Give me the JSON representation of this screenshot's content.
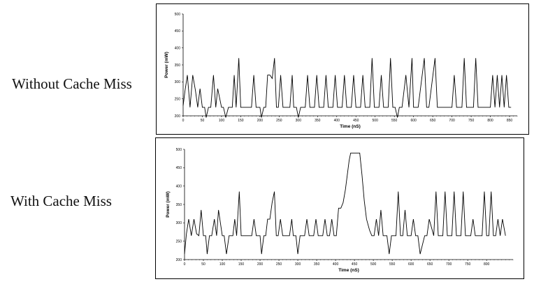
{
  "labels": {
    "top": "Without Cache Miss",
    "bottom": "With Cache Miss"
  },
  "chart_data": [
    {
      "type": "line",
      "title": "",
      "xlabel": "Time (nS)",
      "ylabel": "Power (mW)",
      "xlim": [
        0,
        870
      ],
      "ylim": [
        200,
        500
      ],
      "xticks": [
        0,
        50,
        100,
        150,
        200,
        250,
        300,
        350,
        400,
        450,
        500,
        550,
        600,
        650,
        700,
        750,
        800,
        850
      ],
      "yticks": [
        200,
        250,
        300,
        350,
        400,
        450,
        500
      ],
      "grid": false,
      "series": [
        {
          "x": [
            0,
            5,
            11,
            18,
            25,
            32,
            38,
            44,
            50,
            56,
            60,
            66,
            72,
            79,
            85,
            90,
            100,
            105,
            111,
            118,
            128,
            133,
            138,
            145,
            150,
            160,
            178,
            184,
            190,
            200,
            204,
            210,
            215,
            220,
            226,
            232,
            238,
            243,
            248,
            254,
            260,
            270,
            278,
            284,
            288,
            295,
            300,
            306,
            318,
            324,
            330,
            342,
            348,
            354,
            366,
            372,
            378,
            390,
            396,
            402,
            414,
            420,
            426,
            438,
            444,
            450,
            462,
            468,
            474,
            486,
            492,
            498,
            510,
            516,
            522,
            534,
            540,
            546,
            552,
            558,
            563,
            570,
            580,
            588,
            596,
            600,
            605,
            612,
            628,
            634,
            640,
            656,
            662,
            668,
            700,
            706,
            712,
            726,
            732,
            738,
            756,
            762,
            768,
            800,
            806,
            812,
            818,
            824,
            830,
            836,
            842,
            848,
            854
          ],
          "y": [
            230,
            275,
            320,
            225,
            320,
            275,
            225,
            280,
            225,
            225,
            195,
            225,
            225,
            320,
            225,
            280,
            225,
            225,
            195,
            225,
            225,
            320,
            225,
            370,
            225,
            225,
            225,
            320,
            225,
            225,
            195,
            225,
            225,
            320,
            320,
            310,
            370,
            225,
            225,
            320,
            225,
            225,
            225,
            320,
            225,
            225,
            195,
            225,
            225,
            320,
            225,
            225,
            320,
            225,
            225,
            320,
            225,
            225,
            320,
            225,
            225,
            320,
            225,
            225,
            320,
            225,
            225,
            320,
            225,
            225,
            370,
            225,
            225,
            320,
            225,
            225,
            370,
            225,
            225,
            195,
            225,
            225,
            320,
            225,
            370,
            225,
            225,
            225,
            370,
            225,
            225,
            370,
            225,
            225,
            225,
            320,
            225,
            225,
            370,
            225,
            225,
            370,
            225,
            225,
            320,
            225,
            320,
            225,
            320,
            225,
            320,
            225,
            225
          ]
        }
      ]
    },
    {
      "type": "line",
      "title": "",
      "xlabel": "Time (nS)",
      "ylabel": "Power (mW)",
      "xlim": [
        0,
        870
      ],
      "ylim": [
        200,
        500
      ],
      "xticks": [
        0,
        50,
        100,
        150,
        200,
        250,
        300,
        350,
        400,
        450,
        500,
        550,
        600,
        650,
        700,
        750,
        800
      ],
      "yticks": [
        200,
        250,
        300,
        350,
        400,
        450,
        500
      ],
      "grid": false,
      "series": [
        {
          "x": [
            0,
            5,
            11,
            18,
            25,
            32,
            38,
            44,
            50,
            56,
            60,
            66,
            72,
            79,
            85,
            90,
            100,
            105,
            111,
            118,
            128,
            133,
            138,
            145,
            150,
            160,
            178,
            184,
            190,
            200,
            204,
            210,
            215,
            220,
            226,
            232,
            238,
            243,
            248,
            254,
            260,
            270,
            278,
            284,
            288,
            295,
            300,
            306,
            318,
            324,
            330,
            342,
            348,
            354,
            366,
            372,
            378,
            384,
            390,
            396,
            402,
            408,
            414,
            420,
            426,
            436,
            440,
            446,
            452,
            458,
            464,
            470,
            476,
            482,
            490,
            496,
            502,
            508,
            514,
            520,
            526,
            536,
            542,
            548,
            560,
            566,
            572,
            578,
            584,
            590,
            600,
            606,
            612,
            618,
            624,
            636,
            642,
            648,
            660,
            666,
            672,
            684,
            690,
            696,
            708,
            714,
            720,
            732,
            738,
            744,
            758,
            764,
            770,
            788,
            794,
            800,
            806,
            812,
            818,
            824,
            830,
            836,
            842,
            850
          ],
          "y": [
            215,
            270,
            310,
            265,
            310,
            270,
            265,
            335,
            265,
            265,
            215,
            265,
            265,
            310,
            265,
            335,
            265,
            265,
            215,
            265,
            265,
            310,
            265,
            385,
            265,
            265,
            265,
            310,
            265,
            265,
            215,
            265,
            265,
            310,
            310,
            355,
            385,
            265,
            265,
            310,
            265,
            265,
            265,
            310,
            265,
            265,
            215,
            265,
            265,
            310,
            265,
            265,
            310,
            265,
            265,
            310,
            265,
            265,
            310,
            265,
            265,
            340,
            340,
            355,
            390,
            470,
            490,
            490,
            490,
            490,
            490,
            430,
            360,
            310,
            280,
            265,
            265,
            310,
            265,
            335,
            265,
            265,
            215,
            265,
            265,
            385,
            265,
            265,
            335,
            265,
            265,
            310,
            265,
            265,
            215,
            265,
            265,
            310,
            265,
            385,
            265,
            265,
            385,
            265,
            265,
            385,
            265,
            265,
            385,
            265,
            265,
            310,
            265,
            265,
            385,
            265,
            265,
            385,
            265,
            265,
            310,
            265,
            310,
            265
          ]
        }
      ]
    }
  ]
}
